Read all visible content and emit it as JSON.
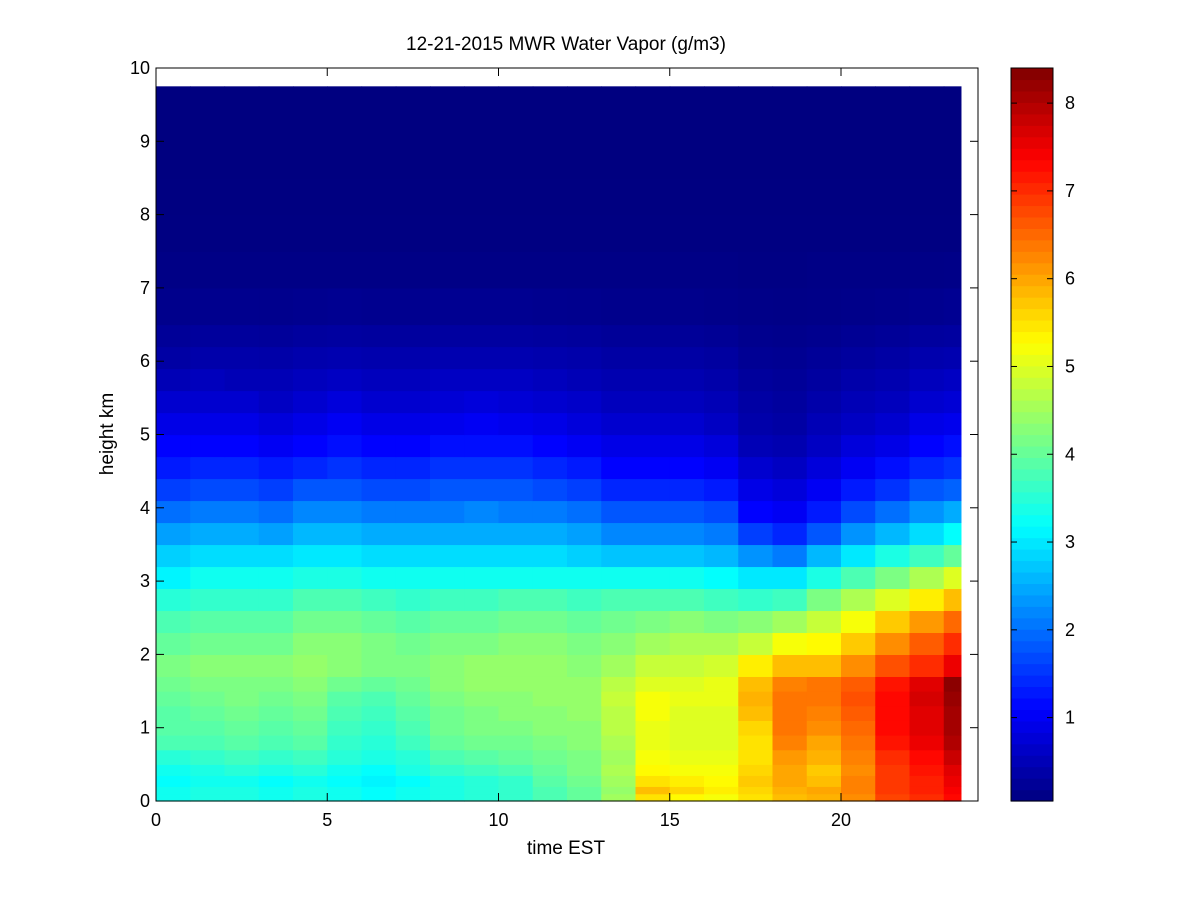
{
  "chart_data": {
    "type": "heatmap",
    "title": "12-21-2015 MWR Water Vapor (g/m3)",
    "xlabel": "time EST",
    "ylabel": "height km",
    "xlim": [
      0,
      24
    ],
    "ylim": [
      0,
      10
    ],
    "xticks": [
      0,
      5,
      10,
      15,
      20
    ],
    "yticks": [
      0,
      1,
      2,
      3,
      4,
      5,
      6,
      7,
      8,
      9,
      10
    ],
    "colorbar": {
      "colormap": "jet",
      "range": [
        0.05,
        8.4
      ],
      "ticks": [
        1,
        2,
        3,
        4,
        5,
        6,
        7,
        8
      ]
    },
    "x": [
      0,
      1,
      2,
      3,
      4,
      5,
      6,
      7,
      8,
      9,
      10,
      11,
      12,
      13,
      14,
      15,
      16,
      17,
      18,
      19,
      20,
      21,
      22,
      23
    ],
    "y": [
      0.0,
      0.1,
      0.2,
      0.35,
      0.5,
      0.7,
      0.9,
      1.1,
      1.3,
      1.5,
      1.7,
      2.0,
      2.3,
      2.6,
      2.9,
      3.2,
      3.5,
      3.8,
      4.1,
      4.4,
      4.7,
      5.0,
      5.3,
      5.6,
      5.9,
      6.2,
      6.5,
      7.0,
      7.5,
      8.0,
      8.5,
      9.0,
      9.5
    ],
    "z_by_height": [
      [
        3.3,
        3.4,
        3.4,
        3.3,
        3.4,
        3.3,
        3.2,
        3.3,
        3.4,
        3.5,
        3.6,
        3.8,
        4.0,
        4.5,
        5.5,
        5.3,
        5.2,
        5.5,
        5.8,
        5.9,
        6.2,
        6.8,
        7.0,
        7.3
      ],
      [
        3.3,
        3.4,
        3.4,
        3.3,
        3.4,
        3.3,
        3.2,
        3.3,
        3.4,
        3.5,
        3.6,
        3.8,
        4.0,
        4.4,
        5.8,
        5.6,
        5.4,
        5.6,
        5.9,
        6.0,
        6.3,
        6.9,
        7.1,
        7.4
      ],
      [
        3.2,
        3.3,
        3.3,
        3.2,
        3.3,
        3.2,
        3.1,
        3.2,
        3.4,
        3.5,
        3.6,
        3.9,
        4.1,
        4.5,
        5.5,
        5.4,
        5.3,
        5.7,
        6.0,
        5.8,
        6.3,
        6.9,
        7.1,
        7.5
      ],
      [
        3.3,
        3.4,
        3.5,
        3.4,
        3.5,
        3.3,
        3.2,
        3.4,
        3.6,
        3.7,
        3.8,
        4.0,
        4.2,
        4.6,
        5.3,
        5.2,
        5.2,
        5.6,
        6.0,
        5.7,
        6.2,
        6.9,
        7.2,
        7.6
      ],
      [
        3.5,
        3.6,
        3.7,
        3.6,
        3.7,
        3.5,
        3.4,
        3.5,
        3.8,
        3.9,
        4.0,
        4.1,
        4.2,
        4.5,
        5.2,
        5.1,
        5.1,
        5.5,
        6.1,
        5.9,
        6.3,
        7.0,
        7.3,
        7.8
      ],
      [
        3.8,
        3.8,
        3.9,
        3.8,
        3.9,
        3.6,
        3.5,
        3.7,
        4.0,
        4.1,
        4.1,
        4.2,
        4.3,
        4.6,
        5.1,
        5.0,
        5.0,
        5.5,
        6.3,
        6.0,
        6.4,
        7.2,
        7.5,
        8.0
      ],
      [
        3.9,
        3.9,
        4.0,
        3.9,
        4.0,
        3.7,
        3.6,
        3.8,
        4.1,
        4.2,
        4.2,
        4.3,
        4.3,
        4.7,
        5.1,
        5.0,
        5.0,
        5.6,
        6.4,
        6.2,
        6.5,
        7.3,
        7.6,
        8.1
      ],
      [
        3.9,
        4.0,
        4.1,
        4.0,
        4.1,
        3.8,
        3.7,
        3.9,
        4.1,
        4.2,
        4.3,
        4.3,
        4.4,
        4.7,
        5.2,
        5.0,
        5.0,
        5.8,
        6.4,
        6.3,
        6.6,
        7.3,
        7.6,
        8.1
      ],
      [
        4.0,
        4.1,
        4.2,
        4.1,
        4.2,
        3.9,
        3.8,
        4.0,
        4.2,
        4.3,
        4.3,
        4.4,
        4.4,
        4.8,
        5.2,
        5.1,
        5.1,
        5.9,
        6.4,
        6.4,
        6.7,
        7.3,
        7.7,
        8.2
      ],
      [
        4.1,
        4.2,
        4.2,
        4.2,
        4.3,
        4.1,
        4.0,
        4.1,
        4.3,
        4.4,
        4.4,
        4.4,
        4.4,
        4.7,
        5.0,
        5.0,
        5.1,
        5.8,
        6.3,
        6.4,
        6.6,
        7.2,
        7.6,
        8.3
      ],
      [
        4.2,
        4.3,
        4.3,
        4.3,
        4.4,
        4.3,
        4.2,
        4.2,
        4.3,
        4.4,
        4.4,
        4.4,
        4.3,
        4.5,
        4.8,
        4.8,
        4.9,
        5.4,
        5.8,
        5.8,
        6.2,
        6.7,
        7.0,
        7.5
      ],
      [
        4.0,
        4.1,
        4.1,
        4.1,
        4.3,
        4.3,
        4.2,
        4.1,
        4.2,
        4.2,
        4.3,
        4.3,
        4.2,
        4.3,
        4.5,
        4.6,
        4.6,
        4.8,
        5.2,
        5.3,
        5.7,
        6.2,
        6.6,
        7.0
      ],
      [
        3.8,
        3.9,
        3.9,
        3.9,
        4.1,
        4.1,
        4.0,
        3.9,
        4.0,
        4.0,
        4.1,
        4.1,
        4.0,
        4.1,
        4.2,
        4.3,
        4.2,
        4.3,
        4.5,
        4.8,
        5.2,
        5.7,
        6.1,
        6.5
      ],
      [
        3.5,
        3.6,
        3.6,
        3.6,
        3.8,
        3.8,
        3.7,
        3.6,
        3.7,
        3.7,
        3.8,
        3.8,
        3.7,
        3.8,
        3.8,
        3.8,
        3.7,
        3.6,
        3.7,
        4.2,
        4.6,
        5.0,
        5.4,
        5.8
      ],
      [
        3.1,
        3.3,
        3.3,
        3.3,
        3.4,
        3.4,
        3.3,
        3.3,
        3.3,
        3.3,
        3.3,
        3.3,
        3.3,
        3.3,
        3.3,
        3.3,
        3.2,
        3.0,
        3.0,
        3.4,
        3.8,
        4.2,
        4.6,
        5.0
      ],
      [
        2.8,
        2.9,
        2.9,
        2.9,
        3.0,
        3.0,
        2.9,
        2.9,
        2.9,
        2.9,
        2.9,
        2.9,
        2.8,
        2.7,
        2.7,
        2.7,
        2.6,
        2.3,
        2.1,
        2.6,
        3.0,
        3.4,
        3.7,
        4.0
      ],
      [
        2.4,
        2.5,
        2.5,
        2.4,
        2.6,
        2.6,
        2.5,
        2.5,
        2.5,
        2.5,
        2.5,
        2.5,
        2.4,
        2.2,
        2.2,
        2.2,
        2.1,
        1.6,
        1.4,
        1.8,
        2.3,
        2.6,
        2.9,
        3.2
      ],
      [
        2.0,
        2.1,
        2.1,
        2.0,
        2.2,
        2.2,
        2.1,
        2.1,
        2.1,
        2.2,
        2.1,
        2.1,
        2.0,
        1.8,
        1.8,
        1.8,
        1.7,
        1.1,
        1.0,
        1.3,
        1.7,
        2.0,
        2.3,
        2.5
      ],
      [
        1.6,
        1.7,
        1.7,
        1.6,
        1.8,
        1.8,
        1.7,
        1.7,
        1.8,
        1.8,
        1.8,
        1.7,
        1.6,
        1.4,
        1.4,
        1.4,
        1.3,
        0.9,
        0.8,
        1.0,
        1.3,
        1.5,
        1.8,
        1.9
      ],
      [
        1.3,
        1.4,
        1.4,
        1.3,
        1.4,
        1.5,
        1.4,
        1.4,
        1.5,
        1.5,
        1.5,
        1.4,
        1.3,
        1.1,
        1.1,
        1.1,
        1.0,
        0.7,
        0.6,
        0.8,
        1.0,
        1.2,
        1.4,
        1.5
      ],
      [
        1.1,
        1.1,
        1.1,
        1.0,
        1.1,
        1.2,
        1.1,
        1.1,
        1.2,
        1.2,
        1.2,
        1.1,
        1.0,
        0.9,
        0.9,
        0.9,
        0.8,
        0.5,
        0.45,
        0.6,
        0.8,
        0.9,
        1.1,
        1.2
      ],
      [
        0.9,
        0.9,
        0.9,
        0.8,
        0.9,
        1.0,
        0.9,
        0.9,
        0.95,
        1.0,
        0.95,
        0.9,
        0.8,
        0.7,
        0.7,
        0.7,
        0.6,
        0.4,
        0.35,
        0.5,
        0.6,
        0.7,
        0.9,
        0.95
      ],
      [
        0.7,
        0.7,
        0.7,
        0.6,
        0.7,
        0.8,
        0.7,
        0.7,
        0.75,
        0.8,
        0.75,
        0.7,
        0.65,
        0.55,
        0.55,
        0.55,
        0.5,
        0.35,
        0.3,
        0.4,
        0.5,
        0.55,
        0.7,
        0.75
      ],
      [
        0.5,
        0.55,
        0.5,
        0.5,
        0.55,
        0.6,
        0.55,
        0.55,
        0.6,
        0.6,
        0.6,
        0.55,
        0.5,
        0.45,
        0.45,
        0.45,
        0.4,
        0.28,
        0.25,
        0.32,
        0.4,
        0.45,
        0.55,
        0.6
      ],
      [
        0.35,
        0.4,
        0.4,
        0.38,
        0.42,
        0.45,
        0.42,
        0.42,
        0.45,
        0.45,
        0.45,
        0.42,
        0.4,
        0.35,
        0.35,
        0.35,
        0.32,
        0.22,
        0.2,
        0.25,
        0.3,
        0.35,
        0.42,
        0.45
      ],
      [
        0.25,
        0.28,
        0.28,
        0.27,
        0.3,
        0.32,
        0.3,
        0.3,
        0.32,
        0.32,
        0.32,
        0.3,
        0.28,
        0.25,
        0.25,
        0.25,
        0.23,
        0.17,
        0.15,
        0.18,
        0.22,
        0.25,
        0.3,
        0.32
      ],
      [
        0.15,
        0.17,
        0.17,
        0.16,
        0.18,
        0.19,
        0.18,
        0.18,
        0.19,
        0.19,
        0.19,
        0.18,
        0.17,
        0.15,
        0.15,
        0.15,
        0.14,
        0.12,
        0.11,
        0.12,
        0.14,
        0.15,
        0.18,
        0.2
      ],
      [
        0.1,
        0.1,
        0.1,
        0.1,
        0.1,
        0.1,
        0.1,
        0.1,
        0.1,
        0.1,
        0.1,
        0.1,
        0.1,
        0.1,
        0.1,
        0.1,
        0.1,
        0.09,
        0.09,
        0.1,
        0.1,
        0.1,
        0.11,
        0.12
      ],
      [
        0.07,
        0.07,
        0.07,
        0.07,
        0.07,
        0.07,
        0.07,
        0.07,
        0.07,
        0.07,
        0.07,
        0.07,
        0.07,
        0.07,
        0.07,
        0.07,
        0.07,
        0.07,
        0.07,
        0.07,
        0.07,
        0.07,
        0.07,
        0.07
      ],
      [
        0.06,
        0.06,
        0.06,
        0.06,
        0.06,
        0.06,
        0.06,
        0.06,
        0.06,
        0.06,
        0.06,
        0.06,
        0.06,
        0.06,
        0.06,
        0.06,
        0.06,
        0.06,
        0.06,
        0.06,
        0.06,
        0.06,
        0.06,
        0.06
      ],
      [
        0.05,
        0.05,
        0.05,
        0.05,
        0.05,
        0.05,
        0.05,
        0.05,
        0.05,
        0.05,
        0.05,
        0.05,
        0.05,
        0.05,
        0.05,
        0.05,
        0.05,
        0.05,
        0.05,
        0.05,
        0.05,
        0.05,
        0.05,
        0.05
      ],
      [
        0.05,
        0.05,
        0.05,
        0.05,
        0.05,
        0.05,
        0.05,
        0.05,
        0.05,
        0.05,
        0.05,
        0.05,
        0.05,
        0.05,
        0.05,
        0.05,
        0.05,
        0.05,
        0.05,
        0.05,
        0.05,
        0.05,
        0.05,
        0.05
      ],
      [
        0.05,
        0.05,
        0.05,
        0.05,
        0.05,
        0.05,
        0.05,
        0.05,
        0.05,
        0.05,
        0.05,
        0.05,
        0.05,
        0.05,
        0.05,
        0.05,
        0.05,
        0.05,
        0.05,
        0.05,
        0.05,
        0.05,
        0.05,
        0.05
      ]
    ],
    "data_extent": {
      "x": [
        0,
        23.5
      ],
      "y": [
        0,
        9.75
      ]
    },
    "grid": false
  }
}
